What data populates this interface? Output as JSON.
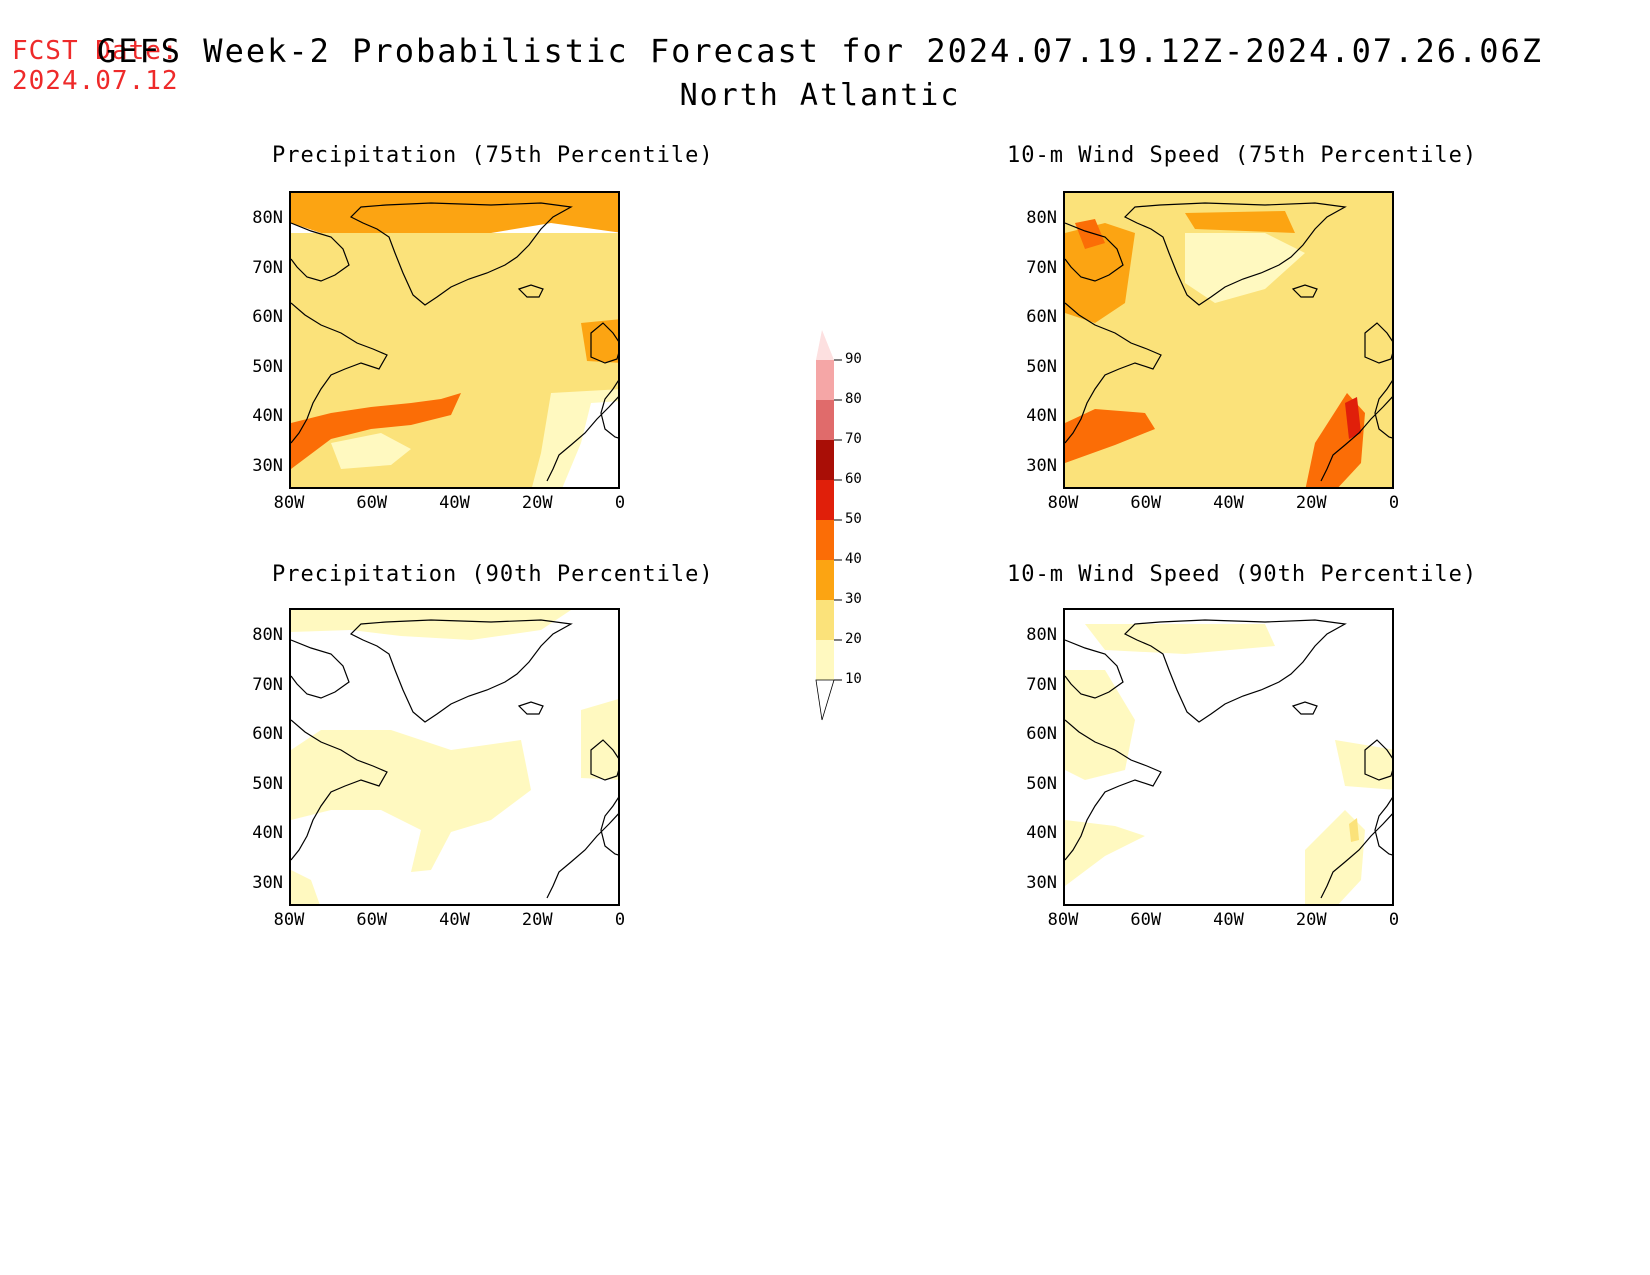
{
  "header": {
    "fcst_label": "FCST Date:",
    "fcst_date": "2024.07.12",
    "title": "GEFS Week-2 Probabilistic Forecast for 2024.07.19.12Z-2024.07.26.06Z",
    "subtitle": "North Atlantic"
  },
  "panels": [
    {
      "title": "Precipitation (75th Percentile)"
    },
    {
      "title": "10-m Wind Speed (75th Percentile)"
    },
    {
      "title": "Precipitation (90th Percentile)"
    },
    {
      "title": "10-m Wind Speed (90th Percentile)"
    }
  ],
  "axes": {
    "lat_labels": [
      "80N",
      "70N",
      "60N",
      "50N",
      "40N",
      "30N"
    ],
    "lon_labels": [
      "80W",
      "60W",
      "40W",
      "20W",
      "0"
    ]
  },
  "colorbar": {
    "levels": [
      "10",
      "20",
      "30",
      "40",
      "50",
      "60",
      "70",
      "80",
      "90"
    ],
    "colors": [
      "#fff9c0",
      "#fbe27a",
      "#fca412",
      "#fb6d06",
      "#e01f0a",
      "#a90e06",
      "#e06b6b",
      "#f5a6a6",
      "#fde0e0"
    ]
  },
  "colors": {
    "fcst_text": "#ee2a2a",
    "land_outline": "#000000"
  }
}
